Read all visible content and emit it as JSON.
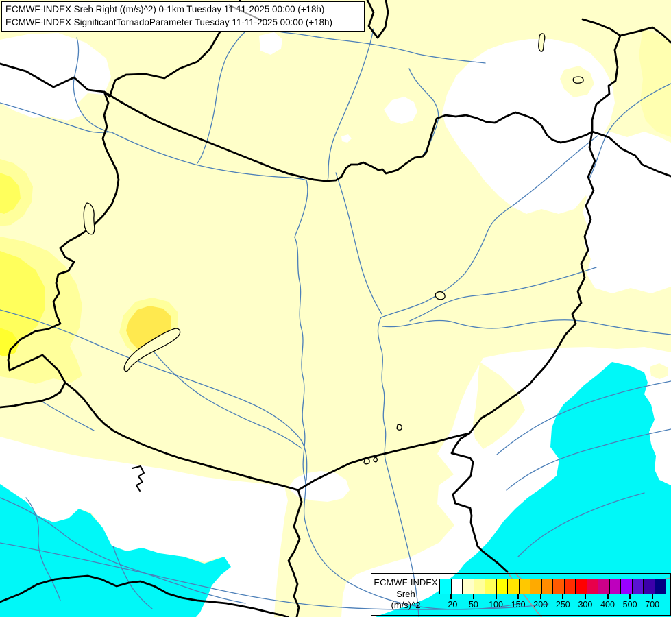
{
  "titles": {
    "line1": "ECMWF-INDEX Sreh Right ((m/s)^2) 0-1km Tuesday 11-11-2025 00:00 (+18h)",
    "line2": "ECMWF-INDEX SignificantTornadoParameter Tuesday 11-11-2025 00:00 (+18h)"
  },
  "legend": {
    "model": "ECMWF-INDEX",
    "parameter": "Sreh",
    "units": "(m/s)^2",
    "tick_labels": [
      "-20",
      "50",
      "100",
      "150",
      "200",
      "250",
      "300",
      "400",
      "500",
      "700"
    ],
    "colors": [
      "#00FFFF",
      "#FFFFFF",
      "#FFFFC9",
      "#FFFF9B",
      "#FFFF5A",
      "#FFFF00",
      "#FFE400",
      "#FFC800",
      "#FFAA00",
      "#FF8C00",
      "#FF5A00",
      "#FF2D00",
      "#FF0000",
      "#E8004B",
      "#CC0088",
      "#BE00BE",
      "#9900FF",
      "#5A14D2",
      "#3C00AA",
      "#000082"
    ]
  },
  "map": {
    "palette": {
      "bg": "#FFFFC9",
      "white": "#FFFFFF",
      "cyan": "#00F8F8",
      "ySoft": "#FFFFB0",
      "yMid": "#FFFF9B",
      "yBright": "#FFFF5C",
      "yHot": "#FFFF2E",
      "gold": "#FFE94F",
      "river": "#4C7FB8",
      "border": "#000000",
      "graticule": "#9B9B9B"
    }
  }
}
